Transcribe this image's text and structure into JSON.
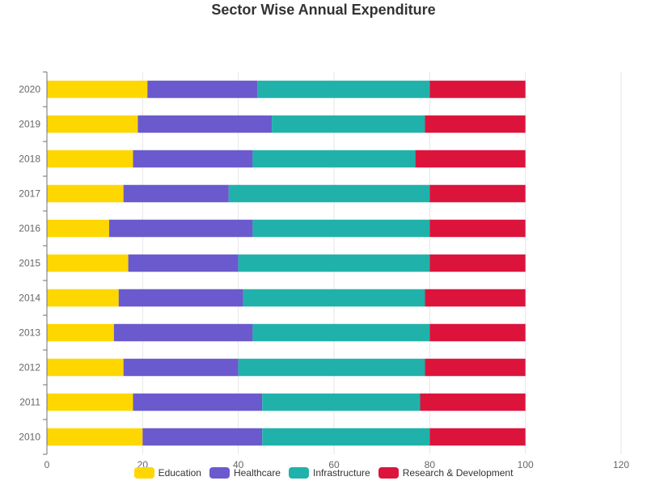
{
  "chart_data": {
    "type": "bar",
    "orientation": "horizontal",
    "stacked": true,
    "title": "Sector Wise Annual Expenditure",
    "categories": [
      "2010",
      "2011",
      "2012",
      "2013",
      "2014",
      "2015",
      "2016",
      "2017",
      "2018",
      "2019",
      "2020"
    ],
    "series": [
      {
        "name": "Education",
        "color": "#FFD700",
        "values": [
          20,
          18,
          16,
          14,
          15,
          17,
          13,
          16,
          18,
          19,
          21
        ]
      },
      {
        "name": "Healthcare",
        "color": "#6A5ACD",
        "values": [
          25,
          27,
          24,
          29,
          26,
          23,
          30,
          22,
          25,
          28,
          23
        ]
      },
      {
        "name": "Infrastructure",
        "color": "#20B2AA",
        "values": [
          35,
          33,
          39,
          37,
          38,
          40,
          37,
          42,
          34,
          32,
          36
        ]
      },
      {
        "name": "Research & Development",
        "color": "#DC143C",
        "values": [
          20,
          22,
          21,
          20,
          21,
          20,
          20,
          20,
          23,
          21,
          20
        ]
      }
    ],
    "xlim": [
      0,
      120
    ],
    "xticks": [
      0,
      20,
      40,
      60,
      80,
      100,
      120
    ],
    "grid": true,
    "legend_position": "bottom"
  }
}
